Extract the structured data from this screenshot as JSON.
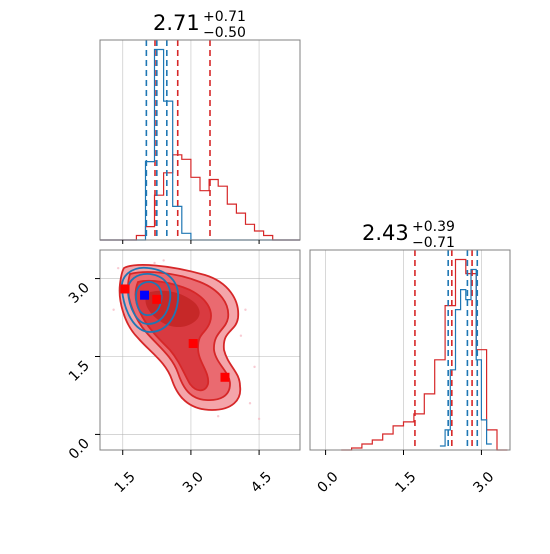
{
  "colors": {
    "red": "#d62728",
    "blue": "#1f77b4",
    "marker_red": "#ff0000",
    "marker_blue": "#0000ff",
    "grid": "#b0b0b0",
    "frame": "#808080"
  },
  "chart_data": [
    {
      "type": "histogram",
      "panel": "top-left",
      "title": {
        "base": "2.71",
        "plus": "+0.71",
        "minus": "−0.50"
      },
      "xlim": [
        1.0,
        5.4
      ],
      "grid": true,
      "series": [
        {
          "color": "red",
          "x": [
            1.0,
            1.2,
            1.4,
            1.6,
            1.8,
            2.0,
            2.2,
            2.4,
            2.6,
            2.8,
            3.0,
            3.2,
            3.4,
            3.6,
            3.8,
            4.0,
            4.2,
            4.4,
            4.6,
            4.8,
            5.0,
            5.2
          ],
          "y": [
            0.0,
            0.0,
            0.0,
            0.0,
            0.02,
            0.06,
            0.2,
            0.3,
            0.38,
            0.36,
            0.28,
            0.22,
            0.27,
            0.24,
            0.16,
            0.12,
            0.07,
            0.04,
            0.02,
            0.0,
            0.0,
            0.0
          ],
          "quantile_lines": [
            2.21,
            2.71,
            3.42
          ]
        },
        {
          "color": "blue",
          "x": [
            1.0,
            1.2,
            1.4,
            1.6,
            1.8,
            2.0,
            2.2,
            2.4,
            2.6,
            2.8,
            3.0,
            3.2,
            3.4,
            3.6,
            3.8,
            4.0,
            4.2,
            4.4,
            4.6,
            4.8,
            5.0,
            5.2
          ],
          "y": [
            0.0,
            0.0,
            0.0,
            0.0,
            0.0,
            0.35,
            0.85,
            0.62,
            0.15,
            0.03,
            0.0,
            0.0,
            0.0,
            0.0,
            0.0,
            0.0,
            0.0,
            0.0,
            0.0,
            0.0,
            0.0,
            0.0
          ],
          "quantile_lines": [
            2.02,
            2.25,
            2.47
          ]
        }
      ]
    },
    {
      "type": "histogram",
      "panel": "bottom-right",
      "title": {
        "base": "2.43",
        "plus": "+0.39",
        "minus": "−0.71"
      },
      "xlim": [
        -0.3,
        3.55
      ],
      "xticks": [
        0.0,
        1.5,
        3.0
      ],
      "xtick_labels": [
        "0.0",
        "1.5",
        "3.0"
      ],
      "grid": true,
      "series": [
        {
          "color": "red",
          "x": [
            0.3,
            0.5,
            0.7,
            0.9,
            1.1,
            1.3,
            1.5,
            1.7,
            1.9,
            2.1,
            2.3,
            2.5,
            2.7,
            2.9,
            3.1,
            3.3
          ],
          "y": [
            0.0,
            0.01,
            0.03,
            0.05,
            0.08,
            0.12,
            0.14,
            0.18,
            0.28,
            0.45,
            0.72,
            0.95,
            0.88,
            0.5,
            0.1,
            0.0
          ],
          "quantile_lines": [
            1.72,
            2.43,
            2.82
          ]
        },
        {
          "color": "blue",
          "x": [
            2.2,
            2.3,
            2.4,
            2.5,
            2.6,
            2.7,
            2.8,
            2.9,
            3.0,
            3.1
          ],
          "y": [
            0.02,
            0.1,
            0.4,
            0.7,
            0.8,
            0.75,
            0.9,
            0.45,
            0.15,
            0.03
          ],
          "quantile_lines": [
            2.36,
            2.73,
            2.92
          ]
        }
      ]
    },
    {
      "type": "contour",
      "panel": "bottom-left",
      "xlim": [
        1.0,
        5.4
      ],
      "ylim": [
        -0.3,
        3.55
      ],
      "xticks": [
        1.5,
        3.0,
        4.5
      ],
      "xtick_labels": [
        "1.5",
        "3.0",
        "4.5"
      ],
      "yticks": [
        0.0,
        1.5,
        3.0
      ],
      "ytick_labels": [
        "0.0",
        "1.5",
        "3.0"
      ],
      "grid": true,
      "markers_red": [
        {
          "x": 1.55,
          "y": 2.8
        },
        {
          "x": 2.25,
          "y": 2.6
        },
        {
          "x": 3.05,
          "y": 1.75
        },
        {
          "x": 3.75,
          "y": 1.1
        }
      ],
      "markers_blue": [
        {
          "x": 1.98,
          "y": 2.68
        }
      ]
    }
  ]
}
